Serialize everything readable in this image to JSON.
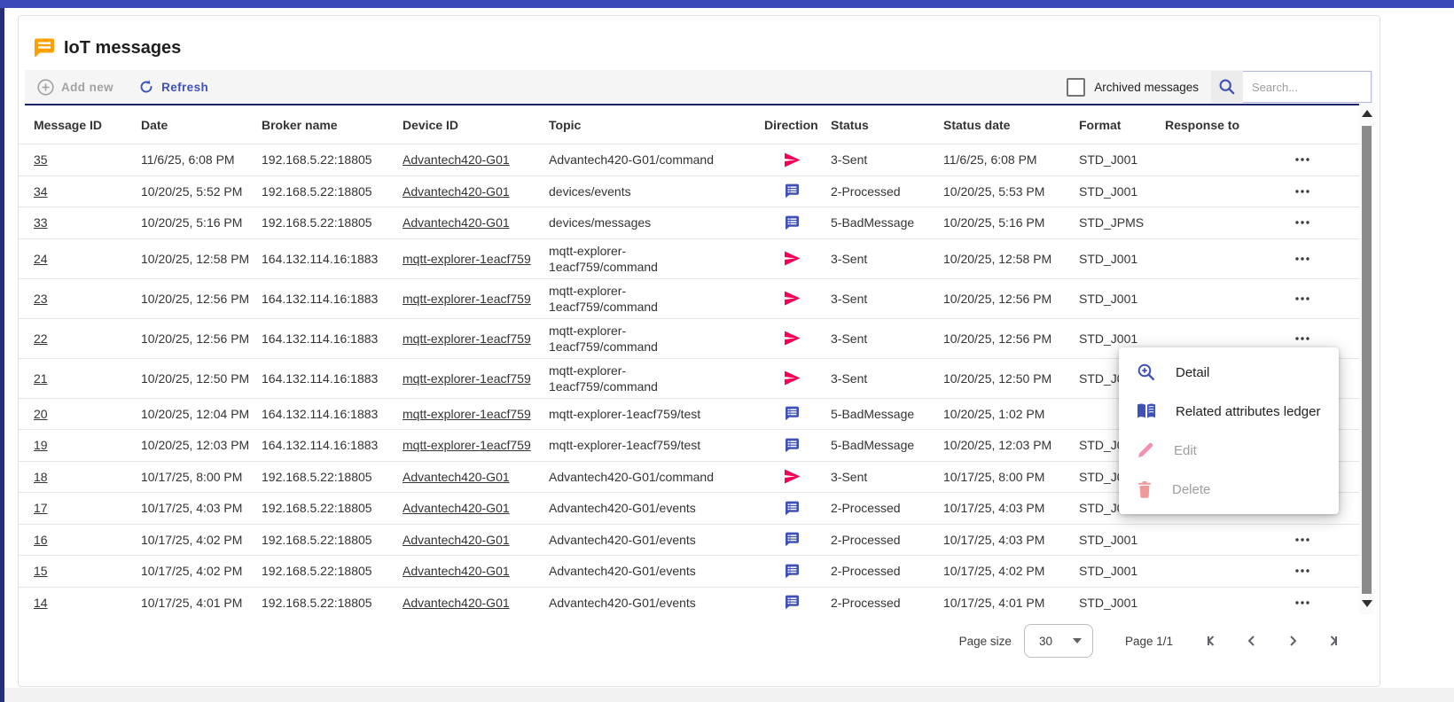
{
  "app": {
    "title": "IoT messages",
    "title_icon": "chat-bubble-icon",
    "title_icon_color": "#ffa000"
  },
  "toolbar": {
    "add_new_label": "Add new",
    "refresh_label": "Refresh",
    "archived_label": "Archived messages",
    "archived_checked": false,
    "search_placeholder": "Search...",
    "search_value": ""
  },
  "colors": {
    "accent_indigo": "#3f51b5",
    "topbar_blue": "#3b4ab8",
    "direction_sent": "#f50057",
    "direction_received": "#3f51b5",
    "disabled_gray": "#9e9e9e"
  },
  "table": {
    "columns": [
      "Message ID",
      "Date",
      "Broker name",
      "Device ID",
      "Topic",
      "Direction",
      "Status",
      "Status date",
      "Format",
      "Response to"
    ],
    "rows": [
      {
        "id": "35",
        "date": "11/6/25, 6:08 PM",
        "broker": "192.168.5.22:18805",
        "device": "Advantech420-G01",
        "topic": "Advantech420-G01/command",
        "direction": "sent",
        "status": "3-Sent",
        "status_date": "11/6/25, 6:08 PM",
        "format": "STD_J001",
        "response_to": ""
      },
      {
        "id": "34",
        "date": "10/20/25, 5:52 PM",
        "broker": "192.168.5.22:18805",
        "device": "Advantech420-G01",
        "topic": "devices/events",
        "direction": "received",
        "status": "2-Processed",
        "status_date": "10/20/25, 5:53 PM",
        "format": "STD_J001",
        "response_to": ""
      },
      {
        "id": "33",
        "date": "10/20/25, 5:16 PM",
        "broker": "192.168.5.22:18805",
        "device": "Advantech420-G01",
        "topic": "devices/messages",
        "direction": "received",
        "status": "5-BadMessage",
        "status_date": "10/20/25, 5:16 PM",
        "format": "STD_JPMS",
        "response_to": ""
      },
      {
        "id": "24",
        "date": "10/20/25, 12:58 PM",
        "broker": "164.132.114.16:1883",
        "device": "mqtt-explorer-1eacf759",
        "topic": "mqtt-explorer-1eacf759/command",
        "direction": "sent",
        "status": "3-Sent",
        "status_date": "10/20/25, 12:58 PM",
        "format": "STD_J001",
        "response_to": ""
      },
      {
        "id": "23",
        "date": "10/20/25, 12:56 PM",
        "broker": "164.132.114.16:1883",
        "device": "mqtt-explorer-1eacf759",
        "topic": "mqtt-explorer-1eacf759/command",
        "direction": "sent",
        "status": "3-Sent",
        "status_date": "10/20/25, 12:56 PM",
        "format": "STD_J001",
        "response_to": ""
      },
      {
        "id": "22",
        "date": "10/20/25, 12:56 PM",
        "broker": "164.132.114.16:1883",
        "device": "mqtt-explorer-1eacf759",
        "topic": "mqtt-explorer-1eacf759/command",
        "direction": "sent",
        "status": "3-Sent",
        "status_date": "10/20/25, 12:56 PM",
        "format": "STD_J001",
        "response_to": ""
      },
      {
        "id": "21",
        "date": "10/20/25, 12:50 PM",
        "broker": "164.132.114.16:1883",
        "device": "mqtt-explorer-1eacf759",
        "topic": "mqtt-explorer-1eacf759/command",
        "direction": "sent",
        "status": "3-Sent",
        "status_date": "10/20/25, 12:50 PM",
        "format": "STD_J001",
        "response_to": ""
      },
      {
        "id": "20",
        "date": "10/20/25, 12:04 PM",
        "broker": "164.132.114.16:1883",
        "device": "mqtt-explorer-1eacf759",
        "topic": "mqtt-explorer-1eacf759/test",
        "direction": "received",
        "status": "5-BadMessage",
        "status_date": "10/20/25, 1:02 PM",
        "format": "",
        "response_to": ""
      },
      {
        "id": "19",
        "date": "10/20/25, 12:03 PM",
        "broker": "164.132.114.16:1883",
        "device": "mqtt-explorer-1eacf759",
        "topic": "mqtt-explorer-1eacf759/test",
        "direction": "received",
        "status": "5-BadMessage",
        "status_date": "10/20/25, 12:03 PM",
        "format": "STD_J001",
        "response_to": ""
      },
      {
        "id": "18",
        "date": "10/17/25, 8:00 PM",
        "broker": "192.168.5.22:18805",
        "device": "Advantech420-G01",
        "topic": "Advantech420-G01/command",
        "direction": "sent",
        "status": "3-Sent",
        "status_date": "10/17/25, 8:00 PM",
        "format": "STD_J001",
        "response_to": ""
      },
      {
        "id": "17",
        "date": "10/17/25, 4:03 PM",
        "broker": "192.168.5.22:18805",
        "device": "Advantech420-G01",
        "topic": "Advantech420-G01/events",
        "direction": "received",
        "status": "2-Processed",
        "status_date": "10/17/25, 4:03 PM",
        "format": "STD_J001",
        "response_to": ""
      },
      {
        "id": "16",
        "date": "10/17/25, 4:02 PM",
        "broker": "192.168.5.22:18805",
        "device": "Advantech420-G01",
        "topic": "Advantech420-G01/events",
        "direction": "received",
        "status": "2-Processed",
        "status_date": "10/17/25, 4:03 PM",
        "format": "STD_J001",
        "response_to": ""
      },
      {
        "id": "15",
        "date": "10/17/25, 4:02 PM",
        "broker": "192.168.5.22:18805",
        "device": "Advantech420-G01",
        "topic": "Advantech420-G01/events",
        "direction": "received",
        "status": "2-Processed",
        "status_date": "10/17/25, 4:02 PM",
        "format": "STD_J001",
        "response_to": ""
      },
      {
        "id": "14",
        "date": "10/17/25, 4:01 PM",
        "broker": "192.168.5.22:18805",
        "device": "Advantech420-G01",
        "topic": "Advantech420-G01/events",
        "direction": "received",
        "status": "2-Processed",
        "status_date": "10/17/25, 4:01 PM",
        "format": "STD_J001",
        "response_to": ""
      }
    ],
    "partial_row_direction": "received",
    "row_action_icon": "more-horizontal-icon"
  },
  "context_menu": {
    "items": [
      {
        "label": "Detail",
        "icon": "zoom-in-icon",
        "enabled": true
      },
      {
        "label": "Related attributes ledger",
        "icon": "ledger-book-icon",
        "enabled": true
      },
      {
        "label": "Edit",
        "icon": "edit-pencil-icon",
        "enabled": false
      },
      {
        "label": "Delete",
        "icon": "delete-trash-icon",
        "enabled": false
      }
    ]
  },
  "pagination": {
    "page_size_label": "Page size",
    "page_size": "30",
    "page_label": "Page 1/1",
    "nav_icons": [
      "first-page-icon",
      "prev-page-icon",
      "next-page-icon",
      "last-page-icon"
    ]
  }
}
